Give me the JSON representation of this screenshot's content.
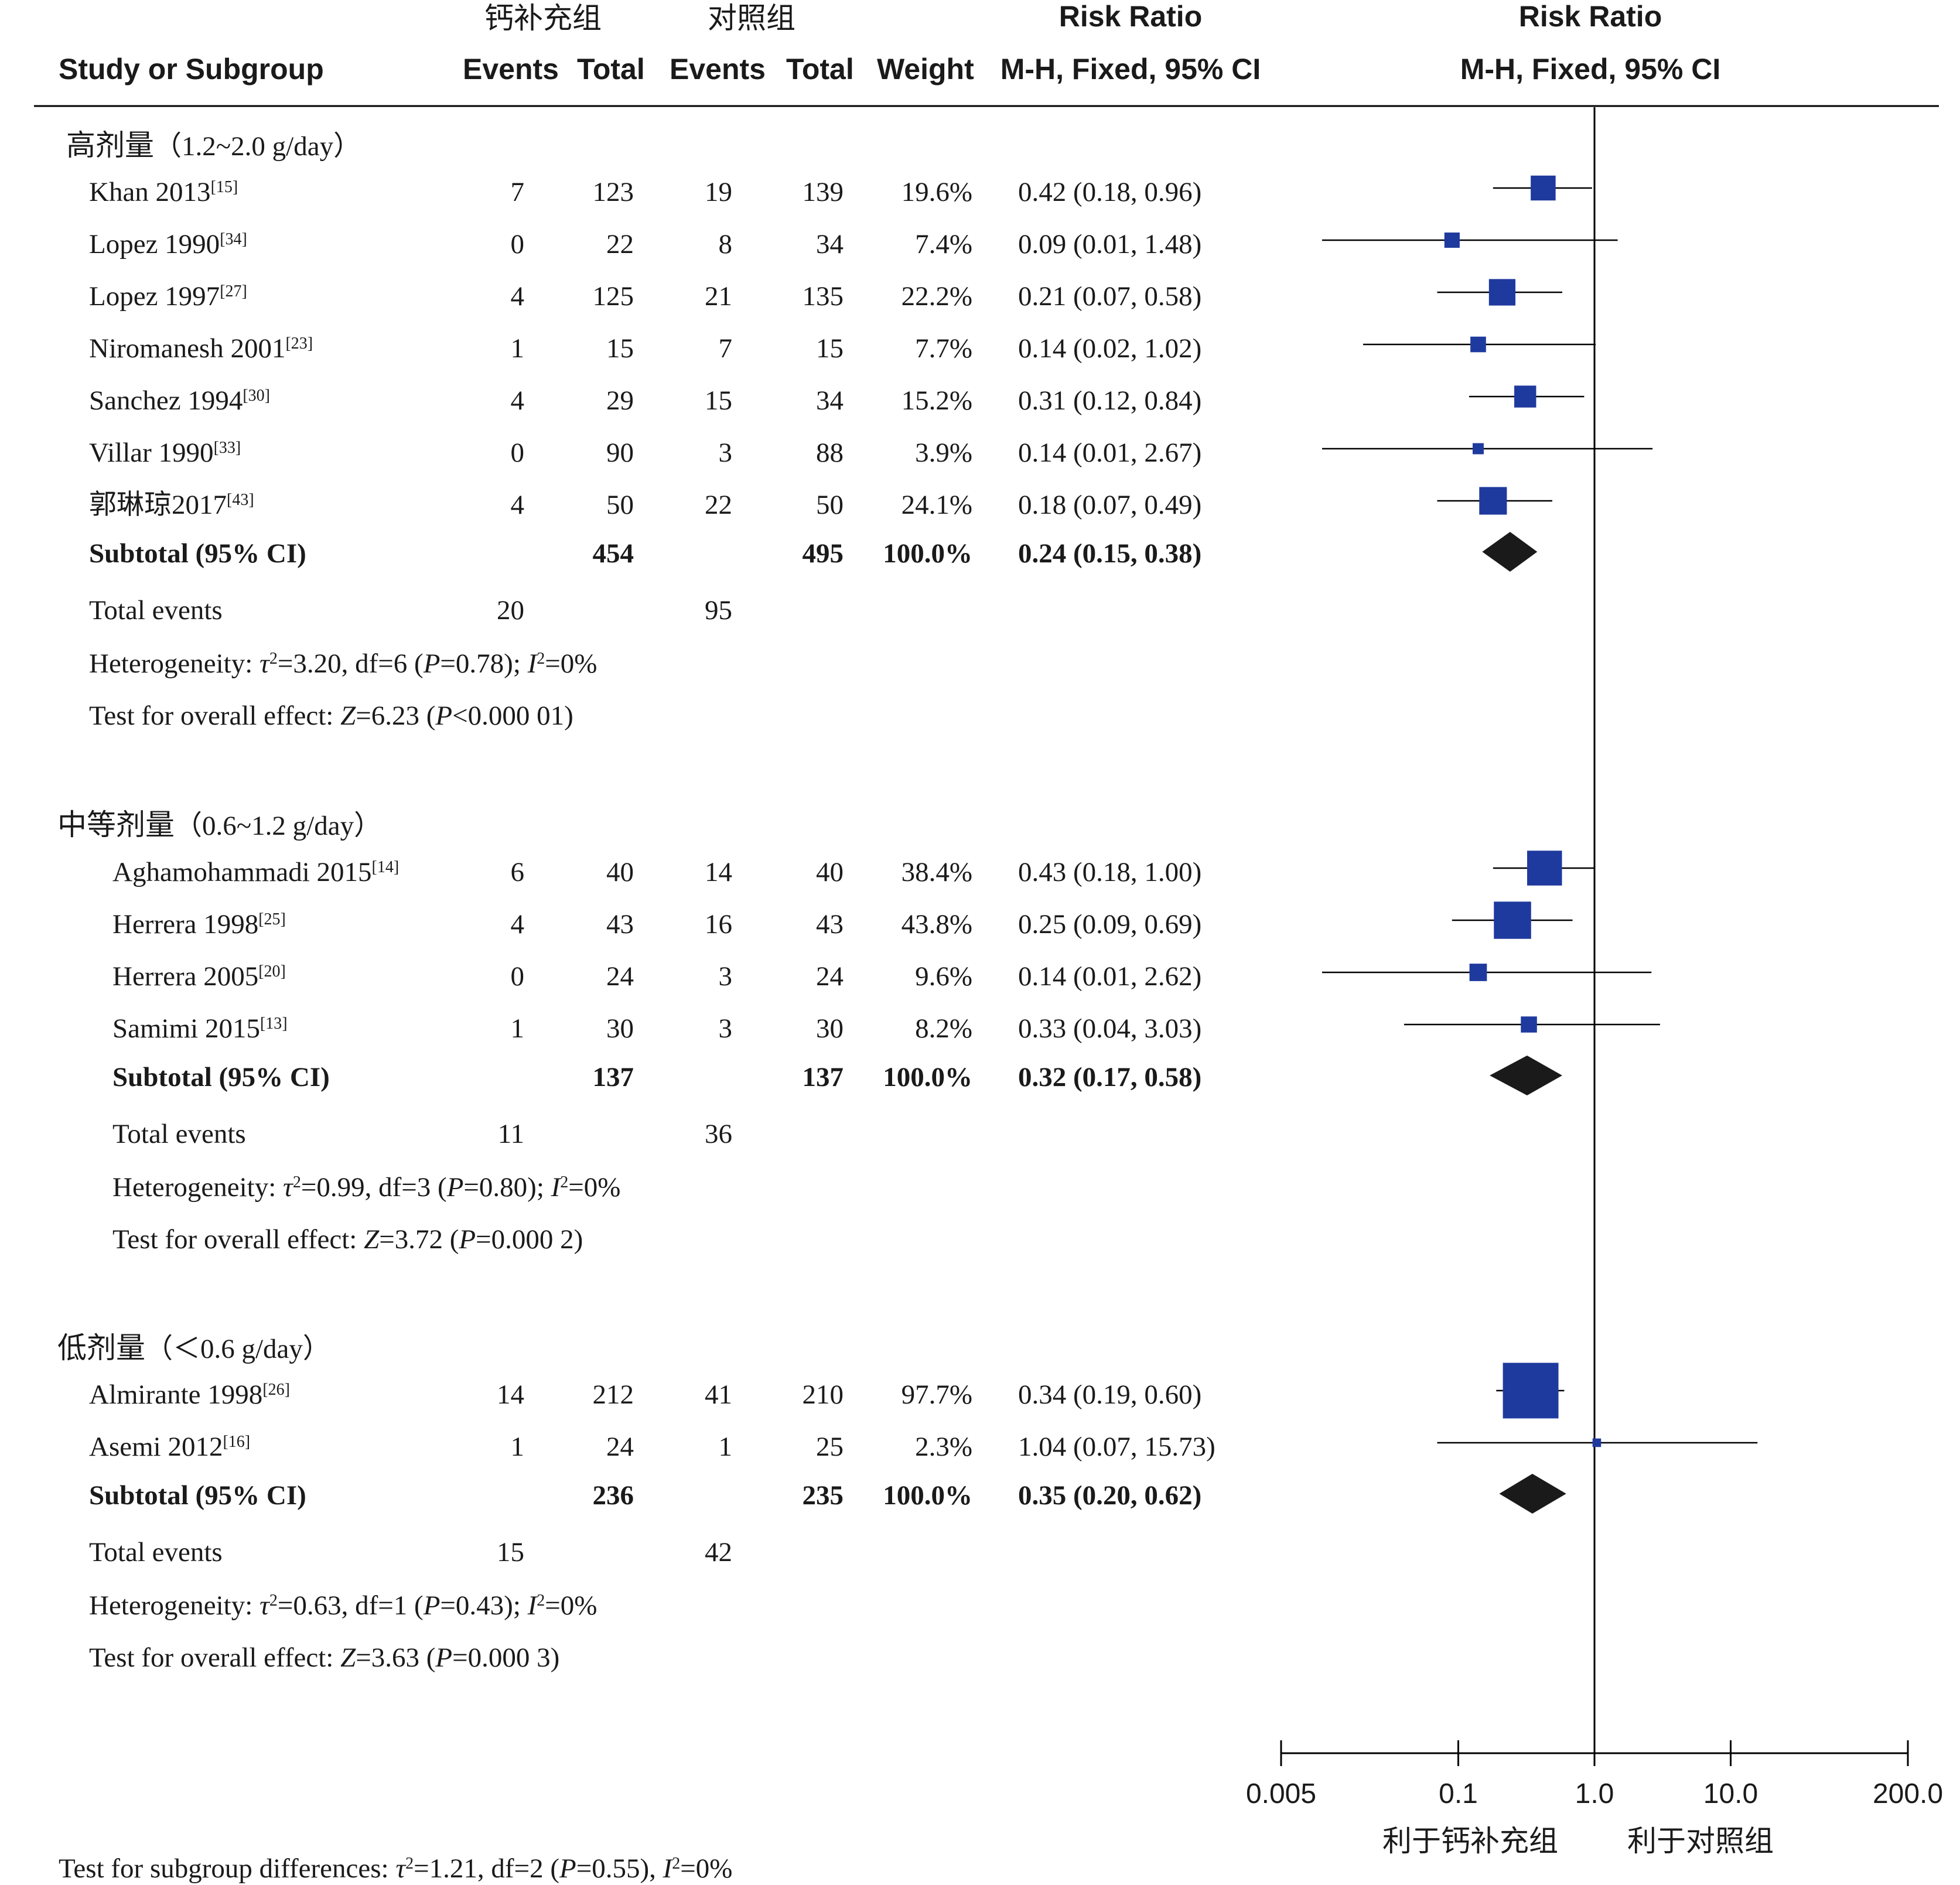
{
  "chart_data": {
    "type": "forest",
    "headers": {
      "group1": "钙补充组",
      "group2": "对照组",
      "study": "Study or Subgroup",
      "events1": "Events",
      "total1": "Total",
      "events2": "Events",
      "total2": "Total",
      "weight": "Weight",
      "rr_title": "Risk Ratio",
      "rr_method": "M-H, Fixed, 95% CI",
      "plot_title": "Risk Ratio",
      "plot_method": "M-H, Fixed, 95% CI"
    },
    "x_scale": "log",
    "xlim": [
      0.005,
      200
    ],
    "x_ticks": [
      0.005,
      0.1,
      1,
      10,
      200
    ],
    "x_tick_labels": [
      "0.005",
      "0.1",
      "1.0",
      "10.0",
      "200.0"
    ],
    "favours_left": "利于钙补充组",
    "favours_right": "利于对照组",
    "colors": {
      "box": "#1f3a9e",
      "diamond": "#1a1a1a",
      "line": "#000000"
    },
    "subgroups": [
      {
        "name": "高剂量",
        "range": "（1.2~2.0 g/day）",
        "studies": [
          {
            "label": "Khan 2013",
            "ref": "[15]",
            "e1": "7",
            "t1": "123",
            "e2": "19",
            "t2": "139",
            "weight": "19.6%",
            "ci_text": "0.42 (0.18, 0.96)",
            "rr": 0.42,
            "lo": 0.18,
            "hi": 0.96,
            "w": 19.6
          },
          {
            "label": "Lopez 1990",
            "ref": "[34]",
            "e1": "0",
            "t1": "22",
            "e2": "8",
            "t2": "34",
            "weight": "7.4%",
            "ci_text": "0.09 (0.01, 1.48)",
            "rr": 0.09,
            "lo": 0.01,
            "hi": 1.48,
            "w": 7.4
          },
          {
            "label": "Lopez 1997",
            "ref": "[27]",
            "e1": "4",
            "t1": "125",
            "e2": "21",
            "t2": "135",
            "weight": "22.2%",
            "ci_text": "0.21 (0.07, 0.58)",
            "rr": 0.21,
            "lo": 0.07,
            "hi": 0.58,
            "w": 22.2
          },
          {
            "label": "Niromanesh 2001",
            "ref": "[23]",
            "e1": "1",
            "t1": "15",
            "e2": "7",
            "t2": "15",
            "weight": "7.7%",
            "ci_text": "0.14 (0.02, 1.02)",
            "rr": 0.14,
            "lo": 0.02,
            "hi": 1.02,
            "w": 7.7
          },
          {
            "label": "Sanchez 1994",
            "ref": "[30]",
            "e1": "4",
            "t1": "29",
            "e2": "15",
            "t2": "34",
            "weight": "15.2%",
            "ci_text": "0.31 (0.12, 0.84)",
            "rr": 0.31,
            "lo": 0.12,
            "hi": 0.84,
            "w": 15.2
          },
          {
            "label": "Villar 1990",
            "ref": "[33]",
            "e1": "0",
            "t1": "90",
            "e2": "3",
            "t2": "88",
            "weight": "3.9%",
            "ci_text": "0.14 (0.01, 2.67)",
            "rr": 0.14,
            "lo": 0.01,
            "hi": 2.67,
            "w": 3.9
          },
          {
            "label": "郭琳琼2017",
            "ref": "[43]",
            "e1": "4",
            "t1": "50",
            "e2": "22",
            "t2": "50",
            "weight": "24.1%",
            "ci_text": "0.18 (0.07, 0.49)",
            "rr": 0.18,
            "lo": 0.07,
            "hi": 0.49,
            "w": 24.1
          }
        ],
        "subtotal": {
          "label": "Subtotal (95% CI)",
          "t1": "454",
          "t2": "495",
          "weight": "100.0%",
          "ci_text": "0.24 (0.15, 0.38)",
          "rr": 0.24,
          "lo": 0.15,
          "hi": 0.38
        },
        "total_events": {
          "label": "Total events",
          "e1": "20",
          "e2": "95"
        },
        "heterogeneity": {
          "prefix": "Heterogeneity: ",
          "tau": "τ",
          "tau_val": "=3.20, df=6 (",
          "p": "P",
          "p_val": "=0.78); ",
          "i": "I",
          "i_val": "=0%"
        },
        "overall": {
          "prefix": "Test for overall effect: ",
          "z": "Z",
          "z_val": "=6.23 (",
          "p": "P",
          "p_val": "<0.000 01)"
        }
      },
      {
        "name": "中等剂量",
        "range": "（0.6~1.2 g/day）",
        "studies": [
          {
            "label": "Aghamohammadi 2015",
            "ref": "[14]",
            "e1": "6",
            "t1": "40",
            "e2": "14",
            "t2": "40",
            "weight": "38.4%",
            "ci_text": "0.43 (0.18, 1.00)",
            "rr": 0.43,
            "lo": 0.18,
            "hi": 1.0,
            "w": 38.4
          },
          {
            "label": "Herrera 1998",
            "ref": "[25]",
            "e1": "4",
            "t1": "43",
            "e2": "16",
            "t2": "43",
            "weight": "43.8%",
            "ci_text": "0.25 (0.09, 0.69)",
            "rr": 0.25,
            "lo": 0.09,
            "hi": 0.69,
            "w": 43.8
          },
          {
            "label": "Herrera 2005",
            "ref": "[20]",
            "e1": "0",
            "t1": "24",
            "e2": "3",
            "t2": "24",
            "weight": "9.6%",
            "ci_text": "0.14 (0.01, 2.62)",
            "rr": 0.14,
            "lo": 0.01,
            "hi": 2.62,
            "w": 9.6
          },
          {
            "label": "Samimi 2015",
            "ref": "[13]",
            "e1": "1",
            "t1": "30",
            "e2": "3",
            "t2": "30",
            "weight": "8.2%",
            "ci_text": "0.33 (0.04, 3.03)",
            "rr": 0.33,
            "lo": 0.04,
            "hi": 3.03,
            "w": 8.2
          }
        ],
        "subtotal": {
          "label": "Subtotal (95% CI)",
          "t1": "137",
          "t2": "137",
          "weight": "100.0%",
          "ci_text": "0.32 (0.17, 0.58)",
          "rr": 0.32,
          "lo": 0.17,
          "hi": 0.58
        },
        "total_events": {
          "label": "Total events",
          "e1": "11",
          "e2": "36"
        },
        "heterogeneity": {
          "prefix": "Heterogeneity: ",
          "tau": "τ",
          "tau_val": "=0.99, df=3 (",
          "p": "P",
          "p_val": "=0.80); ",
          "i": "I",
          "i_val": "=0%"
        },
        "overall": {
          "prefix": "Test for overall effect: ",
          "z": "Z",
          "z_val": "=3.72 (",
          "p": "P",
          "p_val": "=0.000 2)"
        }
      },
      {
        "name": "低剂量",
        "range": "（＜0.6 g/day）",
        "studies": [
          {
            "label": "Almirante 1998",
            "ref": "[26]",
            "e1": "14",
            "t1": "212",
            "e2": "41",
            "t2": "210",
            "weight": "97.7%",
            "ci_text": "0.34 (0.19, 0.60)",
            "rr": 0.34,
            "lo": 0.19,
            "hi": 0.6,
            "w": 97.7
          },
          {
            "label": "Asemi 2012",
            "ref": "[16]",
            "e1": "1",
            "t1": "24",
            "e2": "1",
            "t2": "25",
            "weight": "2.3%",
            "ci_text": "1.04 (0.07, 15.73)",
            "rr": 1.04,
            "lo": 0.07,
            "hi": 15.73,
            "w": 2.3
          }
        ],
        "subtotal": {
          "label": "Subtotal (95% CI)",
          "t1": "236",
          "t2": "235",
          "weight": "100.0%",
          "ci_text": "0.35 (0.20, 0.62)",
          "rr": 0.35,
          "lo": 0.2,
          "hi": 0.62
        },
        "total_events": {
          "label": "Total events",
          "e1": "15",
          "e2": "42"
        },
        "heterogeneity": {
          "prefix": "Heterogeneity: ",
          "tau": "τ",
          "tau_val": "=0.63, df=1 (",
          "p": "P",
          "p_val": "=0.43); ",
          "i": "I",
          "i_val": "=0%"
        },
        "overall": {
          "prefix": "Test for overall effect: ",
          "z": "Z",
          "z_val": "=3.63 (",
          "p": "P",
          "p_val": "=0.000 3)"
        }
      }
    ],
    "subgroup_differences": {
      "prefix": "Test for subgroup differences: ",
      "tau": "τ",
      "tau_val": "=1.21, df=2 (",
      "p": "P",
      "p_val": "=0.55), ",
      "i": "I",
      "i_val": "=0%"
    }
  }
}
